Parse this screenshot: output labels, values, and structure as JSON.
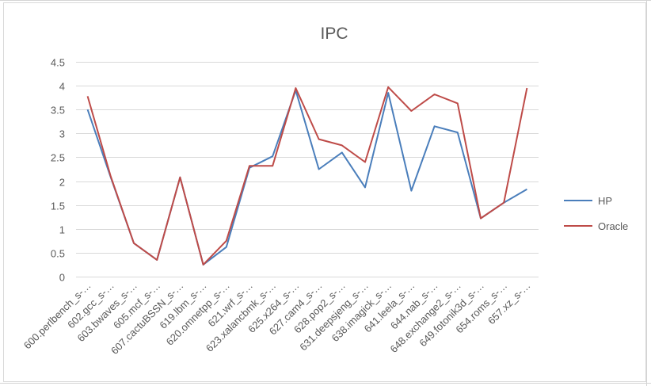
{
  "chart_data": {
    "type": "line",
    "title": "IPC",
    "xlabel": "",
    "ylabel": "",
    "ylim": [
      0,
      4.5
    ],
    "yticks": [
      "0",
      "0.5",
      "1",
      "1.5",
      "2",
      "2.5",
      "3",
      "3.5",
      "4",
      "4.5"
    ],
    "grid": true,
    "legend_position": "right",
    "categories": [
      "600.perlbench_s-…",
      "602.gcc_s-…",
      "603.bwaves_s-…",
      "605.mcf_s-…",
      "607.cactuBSSN_s-…",
      "619.lbm_s-…",
      "620.omnetpp_s-…",
      "621.wrf_s-…",
      "623.xalancbmk_s-…",
      "625.x264_s-…",
      "627.cam4_s-…",
      "628.pop2_s-…",
      "631.deepsjeng_s-…",
      "638.imagick_s-…",
      "641.leela_s-…",
      "644.nab_s-…",
      "648.exchange2_s-…",
      "649.fotonik3d_s-…",
      "654.roms_s-…",
      "657.xz_s-…"
    ],
    "series": [
      {
        "name": "HP",
        "color": "#4a7ebb",
        "values": [
          3.5,
          2.08,
          0.7,
          0.35,
          2.08,
          0.25,
          0.62,
          2.28,
          2.52,
          3.9,
          2.25,
          2.6,
          1.87,
          3.85,
          1.8,
          3.15,
          3.02,
          1.22,
          1.55,
          1.83
        ]
      },
      {
        "name": "Oracle",
        "color": "#be4b48",
        "values": [
          3.78,
          2.1,
          0.7,
          0.35,
          2.08,
          0.25,
          0.75,
          2.32,
          2.32,
          3.95,
          2.88,
          2.75,
          2.4,
          3.97,
          3.47,
          3.82,
          3.63,
          1.22,
          1.55,
          3.95
        ]
      }
    ]
  }
}
